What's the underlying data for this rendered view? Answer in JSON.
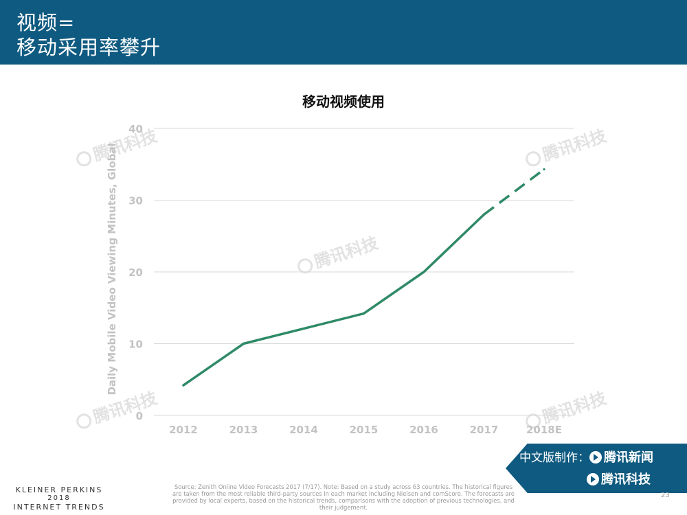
{
  "header": {
    "title_line1": "视频=",
    "title_line2": "移动采用率攀升",
    "bg_color": "#0f5a80"
  },
  "chart_data": {
    "type": "line",
    "title": "移动视频使用",
    "xlabel": "",
    "ylabel": "Daily Mobile Video Viewing Minutes, Global",
    "categories": [
      "2012",
      "2013",
      "2014",
      "2015",
      "2016",
      "2017",
      "2018E"
    ],
    "series": [
      {
        "values": [
          4.2,
          10.0,
          12.1,
          14.2,
          20.0,
          28.0,
          34.3
        ],
        "color": "#2e8a67",
        "dashed_from_index": 5
      }
    ],
    "ylim": [
      0,
      40
    ],
    "yticks": [
      0,
      10,
      20,
      30,
      40
    ],
    "grid": true
  },
  "watermark_text": "腾讯科技",
  "badge": {
    "line1_prefix": "中文版制作：",
    "line1_brand": "腾讯新闻",
    "line2_brand": "腾讯科技"
  },
  "footer": {
    "kp_line1": "KLEINER PERKINS",
    "kp_line2": "2018",
    "kp_line3": "INTERNET TRENDS",
    "source": "Source: Zenith Online Video Forecasts 2017 (7/17). Note: Based on a study across 63 countries. The historical figures are taken from the most reliable third-party sources in each market including Nielsen and comScore. The forecasts are provided by local experts, based on the historical trends, comparisons with the adoption of previous technologies, and their judgement.",
    "page_number": "23"
  }
}
